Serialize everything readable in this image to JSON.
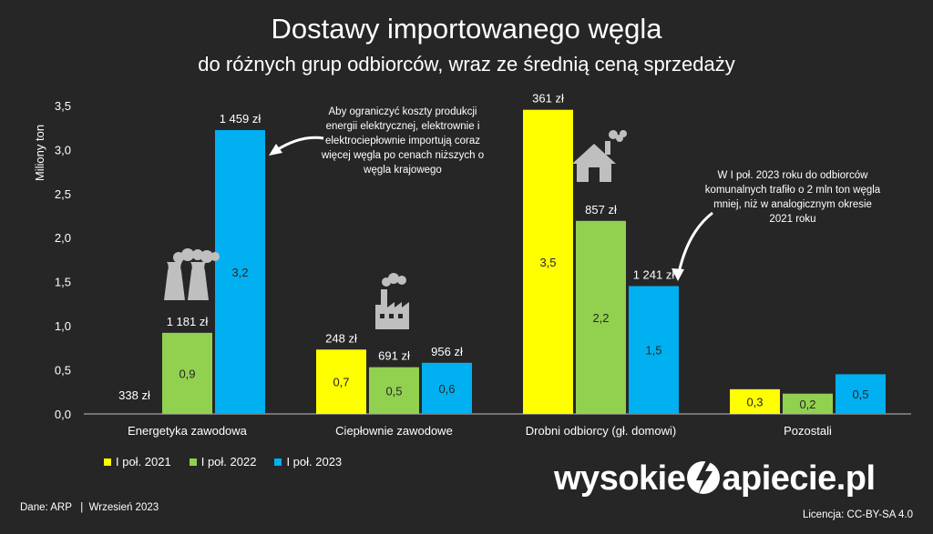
{
  "title": "Dostawy importowanego węgla",
  "subtitle": "do różnych grup odbiorców, wraz ze średnią ceną sprzedaży",
  "annotations": {
    "energy_note": "Aby ograniczyć koszty produkcji energii elektrycznej, elektrownie i elektrociepłownie importują coraz więcej węgla po cenach niższych o węgla krajowego",
    "households_note": "W I poł. 2023 roku do odbiorców komunalnych trafiło o 2 mln ton węgla mniej, niż w analogicznym okresie 2021 roku"
  },
  "footer": {
    "source": "Dane: ARP   |  Wrzesień 2023",
    "license": "Licencja: CC-BY-SA 4.0",
    "logo_left": "wysokie",
    "logo_right": "apiecie.pl"
  },
  "icons": [
    "power-plant-icon",
    "factory-icon",
    "house-icon"
  ],
  "colors": {
    "s2021": "#ffff00",
    "s2022": "#92d050",
    "s2023": "#00b0f0",
    "background": "#262626"
  },
  "chart_data": {
    "type": "bar",
    "title": "Dostawy importowanego węgla",
    "subtitle": "do różnych grup odbiorców, wraz ze średnią ceną sprzedaży",
    "ylabel": "Miliony ton",
    "xlabel": "",
    "ylim": [
      0,
      3.5
    ],
    "yticks": [
      "0,0",
      "0,5",
      "1,0",
      "1,5",
      "2,0",
      "2,5",
      "3,0",
      "3,5"
    ],
    "categories": [
      "Energetyka zawodowa",
      "Ciepłownie zawodowe",
      "Drobni odbiorcy (gł. domowi)",
      "Pozostali"
    ],
    "legend_position": "bottom-left",
    "grid": false,
    "series": [
      {
        "name": "I poł. 2021",
        "color": "#ffff00",
        "values": [
          0,
          0.73,
          3.45,
          0.28
        ],
        "value_labels": [
          "",
          "0,7",
          "3,5",
          "0,3"
        ],
        "price_labels": [
          "338 zł",
          "248 zł",
          "361 zł",
          ""
        ]
      },
      {
        "name": "I poł. 2022",
        "color": "#92d050",
        "values": [
          0.92,
          0.53,
          2.19,
          0.23
        ],
        "value_labels": [
          "0,9",
          "0,5",
          "2,2",
          "0,2"
        ],
        "price_labels": [
          "1 181 zł",
          "691 zł",
          "857 zł",
          ""
        ]
      },
      {
        "name": "I poł. 2023",
        "color": "#00b0f0",
        "values": [
          3.22,
          0.58,
          1.45,
          0.45
        ],
        "value_labels": [
          "3,2",
          "0,6",
          "1,5",
          "0,5"
        ],
        "price_labels": [
          "1 459 zł",
          "956 zł",
          "1 241 zł",
          ""
        ]
      }
    ]
  }
}
